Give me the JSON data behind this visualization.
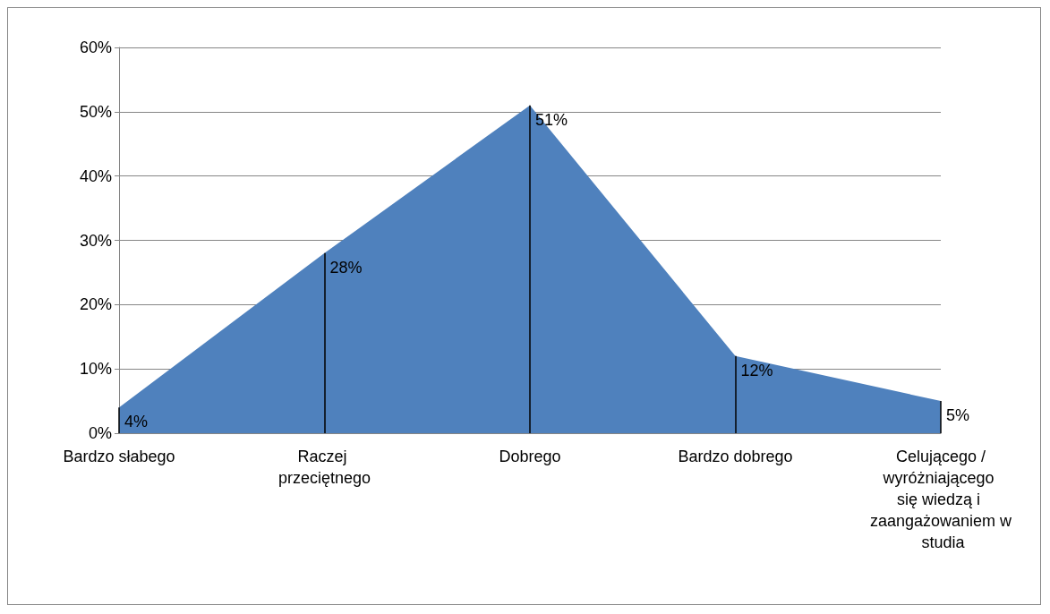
{
  "chart_data": {
    "type": "area",
    "categories": [
      "Bardzo słabego",
      "Raczej przeciętnego",
      "Dobrego",
      "Bardzo dobrego",
      "Celującego /wyróżniającego się wiedzą i zaangażowaniem w studia"
    ],
    "series": [
      {
        "color": "#4f81bd",
        "values": [
          4,
          28,
          51,
          12,
          5
        ],
        "value_labels": [
          "4%",
          "28%",
          "51%",
          "12%",
          "5%"
        ],
        "errors": [
          [
            0,
            4
          ],
          [
            0,
            28
          ],
          [
            0,
            51
          ],
          [
            0,
            12
          ],
          [
            0,
            5
          ]
        ]
      }
    ],
    "ylim": [
      0,
      60
    ],
    "yticks": [
      {
        "value": 0,
        "label": "0%"
      },
      {
        "value": 10,
        "label": "10%"
      },
      {
        "value": 20,
        "label": "20%"
      },
      {
        "value": 30,
        "label": "30%"
      },
      {
        "value": 40,
        "label": "40%"
      },
      {
        "value": 50,
        "label": "50%"
      },
      {
        "value": 60,
        "label": "60%"
      }
    ],
    "grid": "y"
  }
}
